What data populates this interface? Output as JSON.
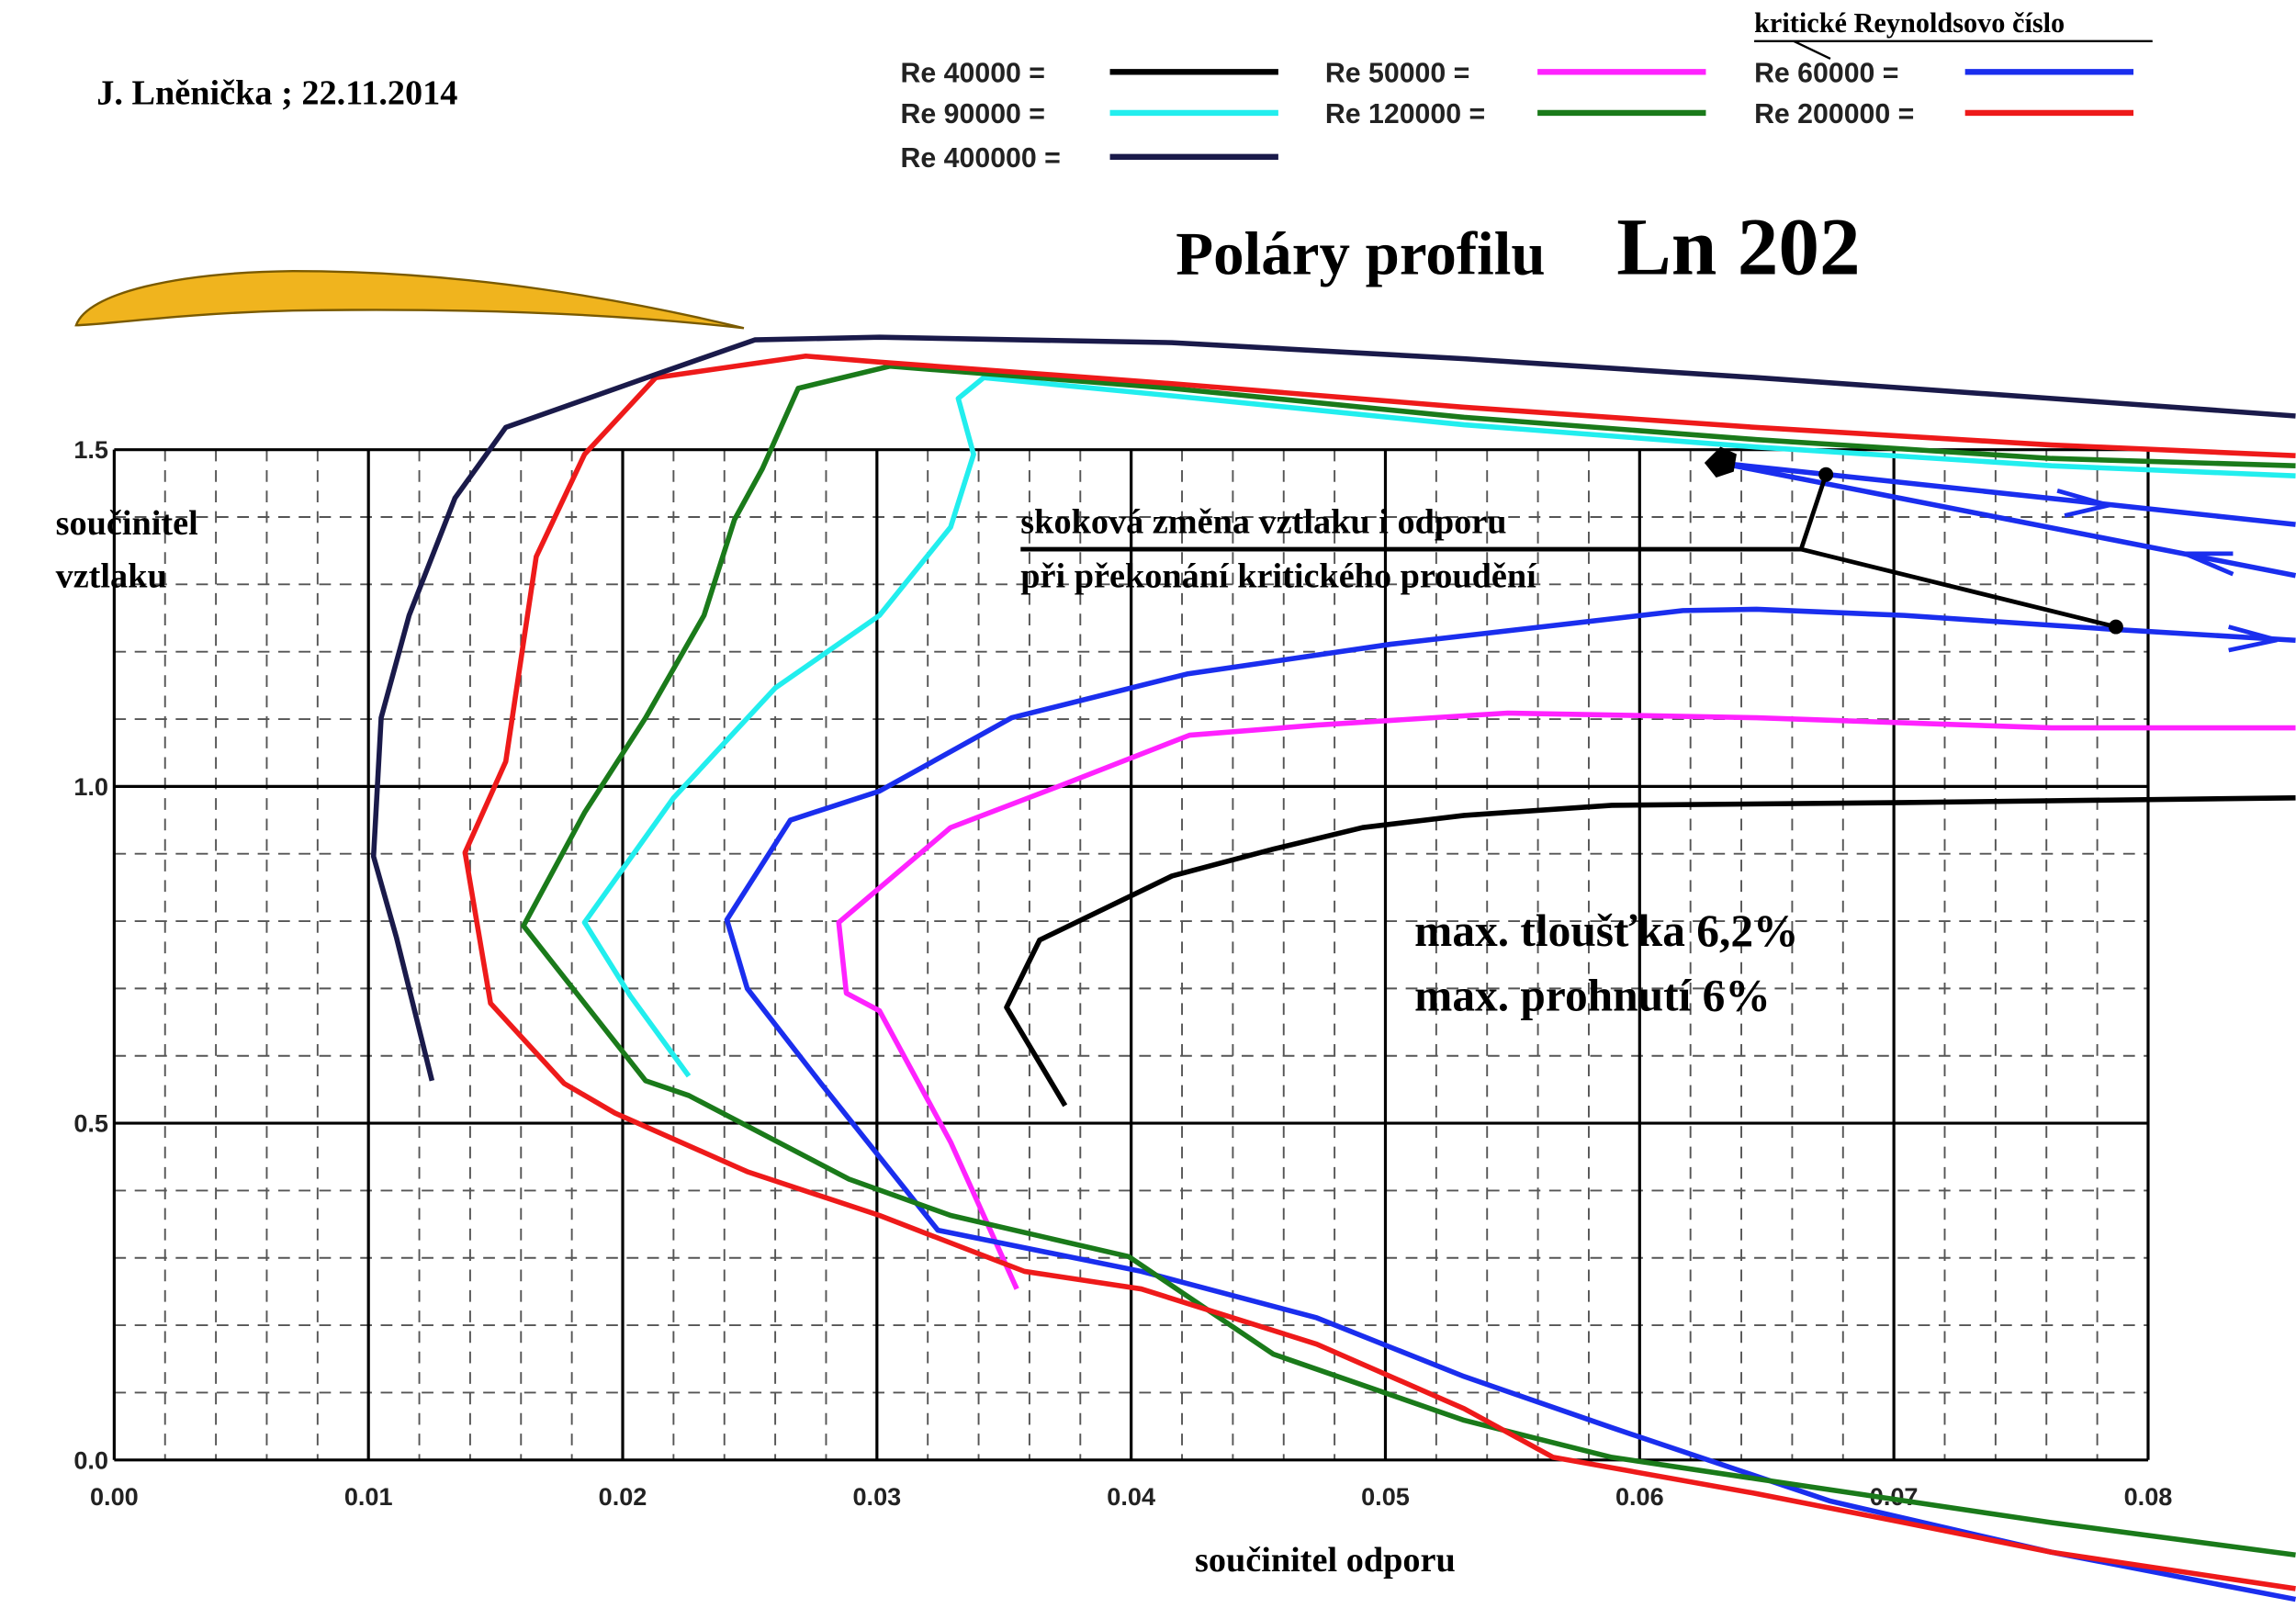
{
  "chart_data": {
    "type": "line",
    "title": "Poláry profilu",
    "subtitle": "Ln 202",
    "author": "J. Lněnička ; 22.11.2014",
    "legend_title": "kritické  Reynoldsovo číslo",
    "x_label": "součinitel  odporu",
    "y_label": [
      "součinitel",
      "vztlaku"
    ],
    "annotations": [
      "skoková  změna  vztlaku  i  odporu",
      "při  překonání  kritického  proudění",
      "max. tloušťka     6,2%",
      "max. prohnutí     6%"
    ],
    "xlim": [
      0,
      0.08
    ],
    "ylim": [
      0,
      1.5
    ],
    "xticks": [
      {
        "value": 0,
        "label": "0.00"
      },
      {
        "value": 0.01,
        "label": "0.01"
      },
      {
        "value": 0.02,
        "label": "0.02"
      },
      {
        "value": 0.03,
        "label": "0.03"
      },
      {
        "value": 0.04,
        "label": "0.04"
      },
      {
        "value": 0.05,
        "label": "0.05"
      },
      {
        "value": 0.06,
        "label": "0.06"
      },
      {
        "value": 0.07,
        "label": "0.07"
      },
      {
        "value": 0.08,
        "label": "0.08"
      }
    ],
    "yticks": [
      {
        "value": 0,
        "label": "0.0"
      },
      {
        "value": 0.5,
        "label": "0.5"
      },
      {
        "value": 1,
        "label": "1.0"
      },
      {
        "value": 1.5,
        "label": "1.5"
      }
    ],
    "grid": true,
    "series": [
      {
        "name": "Re 40000 =",
        "color": "#000000",
        "x": [
          0.0374,
          0.0351,
          0.0364,
          0.0416,
          0.0456,
          0.0491,
          0.0531,
          0.0589,
          0.0704,
          0.0858
        ],
        "values": [
          0.526,
          0.672,
          0.772,
          0.867,
          0.907,
          0.939,
          0.957,
          0.972,
          0.976,
          0.983
        ]
      },
      {
        "name": "Re 50000 =",
        "color": "#ff22ff",
        "x": [
          0.0355,
          0.0329,
          0.0301,
          0.0288,
          0.0285,
          0.0329,
          0.037,
          0.0423,
          0.0473,
          0.0548,
          0.0646,
          0.0762,
          0.0858
        ],
        "values": [
          0.254,
          0.472,
          0.667,
          0.693,
          0.798,
          0.939,
          0.998,
          1.076,
          1.091,
          1.109,
          1.102,
          1.087,
          1.087
        ]
      },
      {
        "name": "Re 60000 =",
        "color": "#1a2eee",
        "x": [
          0.0858,
          0.0762,
          0.0675,
          0.0589,
          0.0531,
          0.0473,
          0.0404,
          0.0324,
          0.0278,
          0.0249,
          0.0241,
          0.0266,
          0.0301,
          0.0353,
          0.0422,
          0.0502,
          0.0617,
          0.0646,
          0.0704,
          0.0787,
          0.0858,
          null,
          0.0632,
          0.0858,
          null,
          0.0632,
          0.0858
        ],
        "values": [
          -0.207,
          -0.137,
          -0.061,
          0.048,
          0.124,
          0.211,
          0.28,
          0.341,
          0.559,
          0.7,
          0.802,
          0.95,
          0.993,
          1.102,
          1.167,
          1.211,
          1.261,
          1.263,
          1.254,
          1.233,
          1.217,
          null,
          1.48,
          1.389,
          null,
          1.48,
          1.313
        ]
      },
      {
        "name": "Re 90000 =",
        "color": "#22eeee",
        "x": [
          0.0226,
          0.0203,
          0.0185,
          0.022,
          0.026,
          0.0301,
          0.0329,
          0.0338,
          0.0332,
          0.0342,
          0.0416,
          0.0531,
          0.0646,
          0.0762,
          0.0858
        ],
        "values": [
          0.57,
          0.689,
          0.798,
          0.983,
          1.146,
          1.254,
          1.385,
          1.493,
          1.576,
          1.607,
          1.58,
          1.537,
          1.504,
          1.476,
          1.461
        ]
      },
      {
        "name": "Re 120000 =",
        "color": "#1a7a1a",
        "x": [
          0.0858,
          0.0762,
          0.0646,
          0.0589,
          0.0531,
          0.0456,
          0.0399,
          0.0329,
          0.0289,
          0.0226,
          0.0209,
          0.0161,
          0.0185,
          0.0209,
          0.0232,
          0.0244,
          0.0255,
          0.0269,
          0.0305,
          0.0416,
          0.0531,
          0.0646,
          0.0762,
          0.0858
        ],
        "values": [
          -0.141,
          -0.093,
          -0.028,
          0.004,
          0.059,
          0.157,
          0.302,
          0.363,
          0.417,
          0.541,
          0.563,
          0.793,
          0.961,
          1.102,
          1.254,
          1.396,
          1.472,
          1.591,
          1.624,
          1.591,
          1.548,
          1.515,
          1.487,
          1.476
        ]
      },
      {
        "name": "Re 200000 =",
        "color": "#ee1a1a",
        "x": [
          0.0858,
          0.0762,
          0.0704,
          0.0646,
          0.0566,
          0.0531,
          0.0473,
          0.0404,
          0.0358,
          0.0301,
          0.0249,
          0.0197,
          0.0177,
          0.0148,
          0.0138,
          0.0154,
          0.0166,
          0.0185,
          0.0213,
          0.0272,
          0.0301,
          0.0416,
          0.0531,
          0.0646,
          0.0762,
          0.0858
        ],
        "values": [
          -0.191,
          -0.137,
          -0.093,
          -0.05,
          0.004,
          0.076,
          0.172,
          0.254,
          0.28,
          0.363,
          0.428,
          0.515,
          0.559,
          0.678,
          0.902,
          1.037,
          1.341,
          1.493,
          1.607,
          1.639,
          1.63,
          1.598,
          1.563,
          1.533,
          1.507,
          1.491
        ]
      },
      {
        "name": "Re 400000 =",
        "color": "#1a1a4a",
        "x": [
          0.0125,
          0.0111,
          0.0102,
          0.0105,
          0.0116,
          0.0134,
          0.0154,
          0.0214,
          0.0252,
          0.0301,
          0.0416,
          0.0531,
          0.0646,
          0.0762,
          0.0858
        ],
        "values": [
          0.563,
          0.776,
          0.896,
          1.102,
          1.254,
          1.428,
          1.533,
          1.613,
          1.663,
          1.667,
          1.659,
          1.635,
          1.607,
          1.576,
          1.55
        ]
      }
    ]
  }
}
